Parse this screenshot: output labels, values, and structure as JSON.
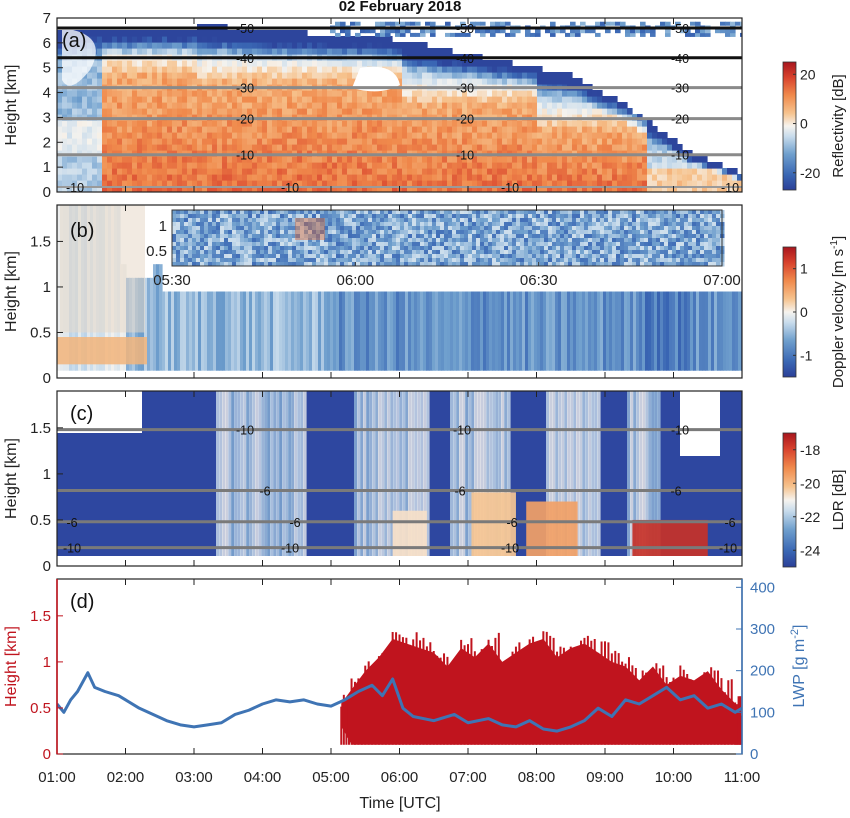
{
  "title": "02 February 2018",
  "colors": {
    "cmap": [
      "#2b3f98",
      "#3a67b4",
      "#6f9fcd",
      "#c9dcec",
      "#f6f3ee",
      "#f6c38e",
      "#f08a4c",
      "#d8422d",
      "#a8161e"
    ],
    "isotherm_dark": "#111111",
    "isotherm_gray": "#8a8a8a",
    "cloud_base": "#c0141e",
    "lwp": "#3f74b4"
  },
  "chart_data": [
    {
      "id": "a",
      "type": "heatmap",
      "panel_label": "(a)",
      "ylabel": "Height [km]",
      "ylim": [
        0,
        7
      ],
      "yticks": [
        "0",
        "1",
        "2",
        "3",
        "4",
        "5",
        "6",
        "7"
      ],
      "xlim": [
        1,
        11
      ],
      "colorbar": {
        "label": "Reflectivity [dB]",
        "ticks": [
          "20",
          "0",
          "-20"
        ],
        "range": [
          -27,
          25
        ]
      },
      "isotherms": [
        {
          "label": "-50",
          "height": 6.6
        },
        {
          "label": "-40",
          "height": 5.4
        },
        {
          "label": "-30",
          "height": 4.2
        },
        {
          "label": "-20",
          "height": 2.95
        },
        {
          "label": "-10",
          "height": 1.5
        }
      ],
      "contour_labels": [
        "-50",
        "-50",
        "-50",
        "-40",
        "-40",
        "-40",
        "-30",
        "-30",
        "-30",
        "-20",
        "-20",
        "-20",
        "-10",
        "-10",
        "-10",
        "-10",
        "-10",
        "-10",
        "-10"
      ]
    },
    {
      "id": "b",
      "type": "heatmap",
      "panel_label": "(b)",
      "ylabel": "Height [km]",
      "ylim": [
        0,
        1.9
      ],
      "yticks": [
        "0",
        "0.5",
        "1",
        "1.5"
      ],
      "xlim": [
        1,
        11
      ],
      "colorbar": {
        "label": "Doppler velocity [m s",
        "label_sup": "-1",
        "label_end": "]",
        "ticks": [
          "1",
          "0",
          "-1"
        ],
        "range": [
          -1.5,
          1.5
        ]
      },
      "inset": {
        "xlim": [
          "05:30",
          "07:00"
        ],
        "xticks": [
          "05:30",
          "06:00",
          "06:30",
          "07:00"
        ],
        "yticks": [
          "1",
          "0.5"
        ]
      }
    },
    {
      "id": "c",
      "type": "heatmap",
      "panel_label": "(c)",
      "ylabel": "Height [km]",
      "ylim": [
        0,
        1.9
      ],
      "yticks": [
        "0",
        "0.5",
        "1",
        "1.5"
      ],
      "xlim": [
        1,
        11
      ],
      "colorbar": {
        "label": "LDR [dB]",
        "ticks": [
          "-18",
          "-20",
          "-22",
          "-24"
        ],
        "range": [
          -25,
          -17
        ]
      },
      "isotherms": [
        {
          "label": "-10",
          "height": 1.48
        },
        {
          "label": "-6",
          "height": 0.82
        },
        {
          "label": "-6",
          "height": 0.48
        },
        {
          "label": "-10",
          "height": 0.2
        }
      ],
      "contour_labels": [
        "-10",
        "-10",
        "-10",
        "-6",
        "-6",
        "-6",
        "-6",
        "-6",
        "-6",
        "-6",
        "-10",
        "-10",
        "-10",
        "-10"
      ]
    },
    {
      "id": "d",
      "type": "line",
      "panel_label": "(d)",
      "ylabel_left": "Height [km]",
      "ylabel_right": "LWP [g m",
      "ylabel_right_sup": "-2",
      "ylabel_right_end": "]",
      "ylim_left": [
        0,
        1.9
      ],
      "yticks_left": [
        "0",
        "0.5",
        "1",
        "1.5"
      ],
      "ylim_right": [
        0,
        420
      ],
      "yticks_right": [
        "0",
        "100",
        "200",
        "300",
        "400"
      ],
      "xlabel": "Time [UTC]",
      "xlim": [
        1,
        11
      ],
      "xticks": [
        "01:00",
        "02:00",
        "03:00",
        "04:00",
        "05:00",
        "06:00",
        "07:00",
        "08:00",
        "09:00",
        "10:00",
        "11:00"
      ],
      "series": [
        {
          "x": [
            1.0,
            1.1,
            1.2,
            1.3,
            1.45,
            1.55,
            1.7,
            1.9,
            2.0,
            2.2,
            2.4,
            2.6,
            2.8,
            3.0,
            3.2,
            3.4,
            3.6,
            3.8,
            4.0,
            4.2,
            4.4,
            4.6,
            4.8,
            5.0,
            5.2,
            5.4,
            5.6,
            5.75,
            5.9,
            6.05,
            6.2,
            6.5,
            6.8,
            7.0,
            7.3,
            7.5,
            7.7,
            7.9,
            8.1,
            8.3,
            8.5,
            8.7,
            8.9,
            9.1,
            9.3,
            9.5,
            9.7,
            9.9,
            10.1,
            10.3,
            10.5,
            10.7,
            10.9,
            11.0
          ],
          "values": [
            120,
            100,
            130,
            150,
            195,
            160,
            150,
            140,
            130,
            110,
            95,
            80,
            70,
            65,
            70,
            75,
            95,
            105,
            120,
            130,
            125,
            130,
            120,
            115,
            130,
            150,
            165,
            140,
            180,
            110,
            90,
            80,
            95,
            75,
            85,
            70,
            65,
            80,
            60,
            55,
            65,
            80,
            110,
            90,
            130,
            120,
            140,
            160,
            130,
            140,
            110,
            120,
            100,
            110
          ]
        }
      ],
      "cloud_base": {
        "x": [
          5.15,
          5.3,
          5.5,
          5.7,
          5.9,
          6.1,
          6.3,
          6.5,
          6.7,
          6.9,
          7.1,
          7.3,
          7.5,
          7.7,
          7.9,
          8.1,
          8.3,
          8.5,
          8.7,
          8.9,
          9.1,
          9.3,
          9.5,
          9.7,
          9.9,
          10.1,
          10.3,
          10.5,
          10.7,
          10.9,
          11.0
        ],
        "top": [
          0.55,
          0.7,
          0.9,
          1.05,
          1.25,
          1.2,
          1.15,
          1.1,
          0.95,
          1.15,
          1.05,
          1.2,
          1.0,
          1.1,
          1.2,
          1.25,
          1.05,
          1.15,
          1.2,
          1.1,
          1.0,
          0.95,
          0.8,
          0.95,
          0.75,
          0.85,
          0.8,
          0.9,
          0.7,
          0.55,
          0.4
        ],
        "bottom": [
          0.3,
          0.1,
          0.1,
          0.1,
          0.1,
          0.1,
          0.1,
          0.1,
          0.1,
          0.1,
          0.1,
          0.1,
          0.1,
          0.1,
          0.1,
          0.1,
          0.1,
          0.1,
          0.1,
          0.1,
          0.1,
          0.1,
          0.1,
          0.1,
          0.1,
          0.1,
          0.1,
          0.1,
          0.1,
          0.1,
          0.1
        ]
      }
    }
  ]
}
